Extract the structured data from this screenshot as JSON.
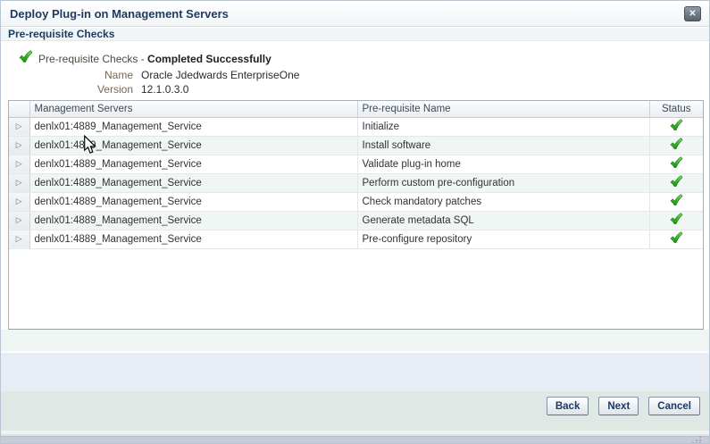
{
  "dialog": {
    "title": "Deploy Plug-in on Management Servers",
    "close_glyph": "✕"
  },
  "section": {
    "header": "Pre-requisite Checks"
  },
  "summary": {
    "status_prefix": "Pre-requisite Checks - ",
    "status_result": "Completed Successfully",
    "fields": [
      {
        "label": "Name",
        "value": "Oracle Jdedwards EnterpriseOne"
      },
      {
        "label": "Version",
        "value": "12.1.0.3.0"
      }
    ]
  },
  "table": {
    "columns": {
      "servers": "Management Servers",
      "prerequisite": "Pre-requisite Name",
      "status": "Status"
    },
    "rows": [
      {
        "server": "denlx01:4889_Management_Service",
        "prerequisite": "Initialize",
        "status": "success"
      },
      {
        "server": "denlx01:4889_Management_Service",
        "prerequisite": "Install software",
        "status": "success"
      },
      {
        "server": "denlx01:4889_Management_Service",
        "prerequisite": "Validate plug-in home",
        "status": "success"
      },
      {
        "server": "denlx01:4889_Management_Service",
        "prerequisite": "Perform custom pre-configuration",
        "status": "success"
      },
      {
        "server": "denlx01:4889_Management_Service",
        "prerequisite": "Check mandatory patches",
        "status": "success"
      },
      {
        "server": "denlx01:4889_Management_Service",
        "prerequisite": "Generate metadata SQL",
        "status": "success"
      },
      {
        "server": "denlx01:4889_Management_Service",
        "prerequisite": "Pre-configure repository",
        "status": "success"
      }
    ],
    "expand_glyph": "▷"
  },
  "footer": {
    "buttons": [
      {
        "name": "back-button",
        "label": "Back"
      },
      {
        "name": "next-button",
        "label": "Next"
      },
      {
        "name": "cancel-button",
        "label": "Cancel"
      }
    ]
  },
  "colors": {
    "success_green": "#2da12d",
    "title_navy": "#1c3a5e",
    "label_brown": "#77674f",
    "alt_row": "#eff6f3"
  }
}
